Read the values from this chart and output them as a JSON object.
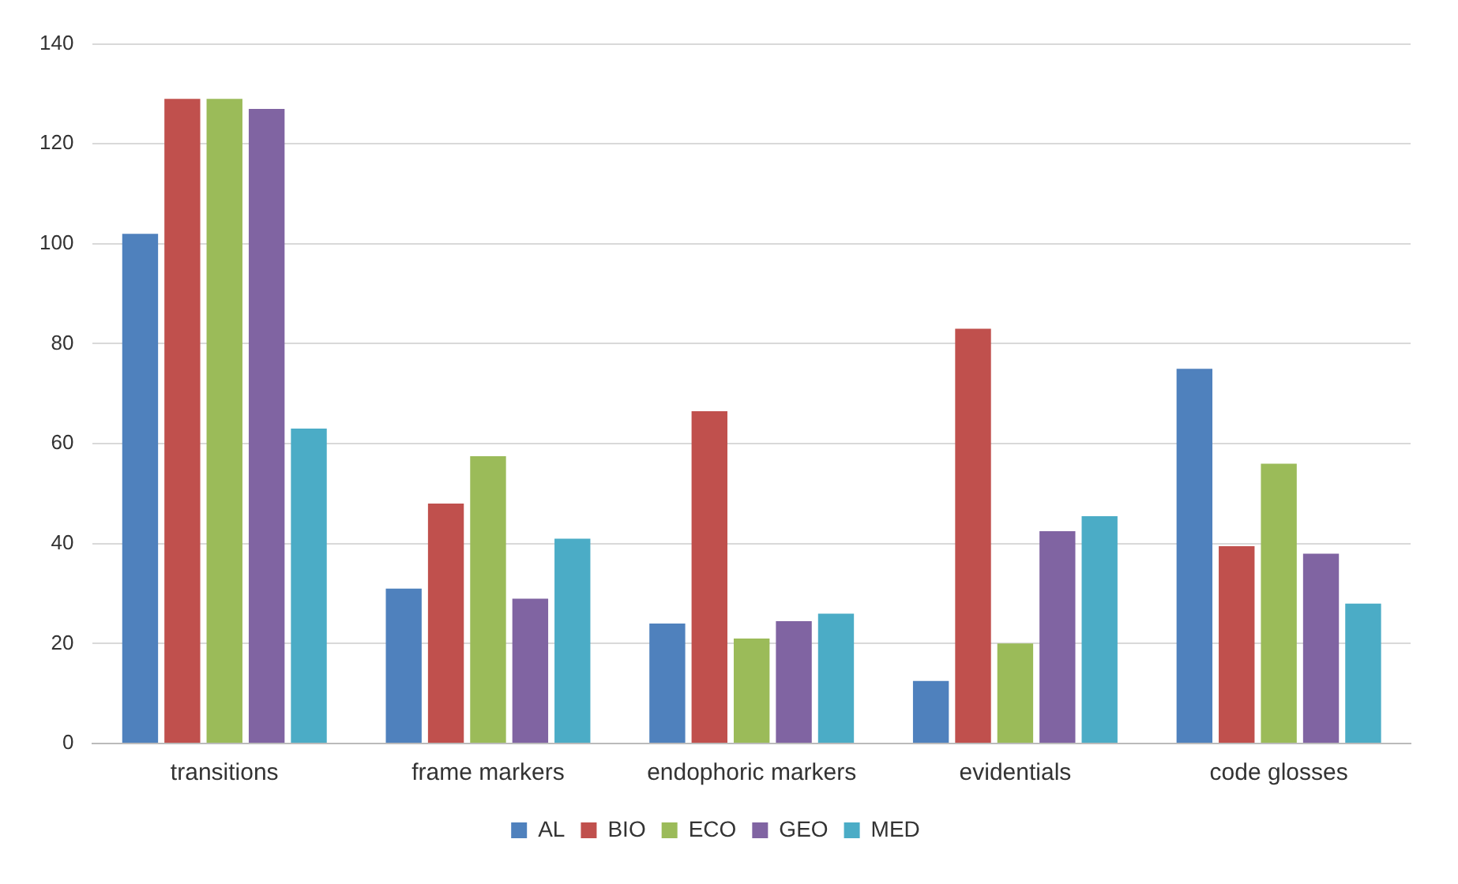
{
  "chart_data": {
    "type": "bar",
    "categories": [
      "transitions",
      "frame markers",
      "endophoric markers",
      "evidentials",
      "code glosses"
    ],
    "series": [
      {
        "name": "AL",
        "color": "#4f81bd",
        "values": [
          102,
          31,
          24,
          12.5,
          75
        ]
      },
      {
        "name": "BIO",
        "color": "#c0504d",
        "values": [
          129,
          48,
          66.5,
          83,
          39.5
        ]
      },
      {
        "name": "ECO",
        "color": "#9bbb59",
        "values": [
          129,
          57.5,
          21,
          20,
          56
        ]
      },
      {
        "name": "GEO",
        "color": "#8064a2",
        "values": [
          127,
          29,
          24.5,
          42.5,
          38
        ]
      },
      {
        "name": "MED",
        "color": "#4bacc6",
        "values": [
          63,
          41,
          26,
          45.5,
          28
        ]
      }
    ],
    "ylim": [
      0,
      140
    ],
    "yticks": [
      0,
      20,
      40,
      60,
      80,
      100,
      120,
      140
    ],
    "grid": "y",
    "legend": "bottom"
  }
}
